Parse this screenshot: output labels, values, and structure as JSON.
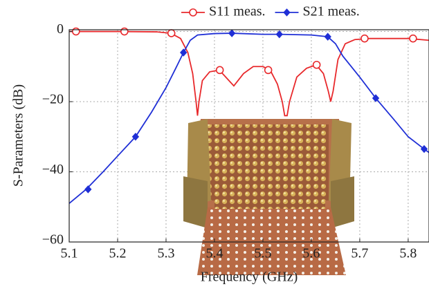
{
  "chart_data": {
    "type": "line",
    "x_label": "Frequency (GHz)",
    "y_label": "S-Parameters (dB)",
    "xlim": [
      5.1,
      5.843
    ],
    "ylim": [
      -60,
      0.5
    ],
    "xticks": [
      5.1,
      5.2,
      5.3,
      5.4,
      5.5,
      5.6,
      5.7,
      5.8
    ],
    "yticks": [
      0,
      {
        "value": -20,
        "label": "−20"
      },
      {
        "value": -40,
        "label": "−40"
      },
      {
        "value": -60,
        "label": "−60"
      }
    ],
    "grid": true,
    "legend": "top",
    "series": [
      {
        "name": "S11 meas.",
        "color": "#e8282b",
        "marker": "circle",
        "x": [
          5.1,
          5.2,
          5.28,
          5.31,
          5.33,
          5.345,
          5.355,
          5.362,
          5.365,
          5.368,
          5.375,
          5.39,
          5.41,
          5.43,
          5.44,
          5.46,
          5.48,
          5.5,
          5.515,
          5.53,
          5.54,
          5.545,
          5.55,
          5.555,
          5.57,
          5.59,
          5.61,
          5.625,
          5.635,
          5.64,
          5.645,
          5.655,
          5.67,
          5.69,
          5.72,
          5.8,
          5.843
        ],
        "values": [
          0,
          0,
          -0.1,
          -0.5,
          -2,
          -6,
          -12,
          -20,
          -24,
          -20,
          -14,
          -11.5,
          -11,
          -14,
          -15.5,
          -12,
          -10,
          -10,
          -11,
          -15,
          -20,
          -24,
          -24,
          -20,
          -13,
          -10.5,
          -9.5,
          -12,
          -17,
          -20,
          -17,
          -8,
          -3.5,
          -2.3,
          -2,
          -2,
          -2.5
        ],
        "marker_x": [
          5.114,
          5.214,
          5.311,
          5.411,
          5.511,
          5.611,
          5.71,
          5.81
        ],
        "marker_values": [
          0,
          0,
          -0.5,
          -11,
          -11,
          -9.5,
          -2,
          -2
        ]
      },
      {
        "name": "S21 meas.",
        "color": "#1f2fd6",
        "marker": "diamond",
        "x": [
          5.1,
          5.135,
          5.17,
          5.2,
          5.237,
          5.27,
          5.3,
          5.32,
          5.336,
          5.35,
          5.365,
          5.4,
          5.436,
          5.5,
          5.534,
          5.6,
          5.634,
          5.65,
          5.665,
          5.7,
          5.733,
          5.77,
          5.8,
          5.833,
          5.843
        ],
        "values": [
          -49,
          -45,
          -40,
          -35.5,
          -30,
          -23,
          -16,
          -10.5,
          -6,
          -2.5,
          -1,
          -0.6,
          -0.5,
          -0.8,
          -0.8,
          -1,
          -1.5,
          -3.5,
          -7,
          -13,
          -19,
          -25,
          -30,
          -33.5,
          -34.5
        ],
        "marker_x": [
          5.139,
          5.237,
          5.336,
          5.436,
          5.534,
          5.634,
          5.733,
          5.833
        ],
        "marker_values": [
          -45,
          -30,
          -6,
          -0.5,
          -0.8,
          -1.5,
          -19,
          -33.5
        ]
      }
    ]
  }
}
